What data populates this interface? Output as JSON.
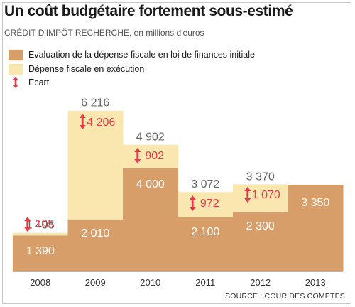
{
  "title": "Un coût budgétaire fortement sous-estimé",
  "subtitle": "CRÉDIT D'IMPÔT RECHERCHE, en millions d'euros",
  "source": "SOURCE : COUR DES COMPTES",
  "colors": {
    "initial": "#d79e6a",
    "execution": "#fae7b0",
    "ecart": "#e03c4a",
    "label": "#666666",
    "baseline": "#b5b5b5"
  },
  "legend": [
    {
      "label": "Evaluation de la dépense fiscale en loi de finances initiale",
      "key": "initial"
    },
    {
      "label": "Dépense fiscale en exécution",
      "key": "execution"
    },
    {
      "label": "Ecart",
      "key": "ecart"
    }
  ],
  "chart_data": {
    "type": "bar",
    "categories": [
      "2008",
      "2009",
      "2010",
      "2011",
      "2012",
      "2013"
    ],
    "series": [
      {
        "name": "Evaluation de la dépense fiscale en loi de finances initiale",
        "values": [
          1390,
          2010,
          4000,
          2100,
          2300,
          3350
        ]
      },
      {
        "name": "Dépense fiscale en exécution",
        "values": [
          1495,
          6216,
          4902,
          3072,
          3370,
          null
        ]
      },
      {
        "name": "Ecart",
        "values": [
          105,
          4206,
          902,
          972,
          1070,
          null
        ]
      }
    ],
    "value_labels": {
      "initial": [
        "1 390",
        "2 010",
        "4 000",
        "2 100",
        "2 300",
        "3 350"
      ],
      "execution": [
        "1 495",
        "6 216",
        "4 902",
        "3 072",
        "3 370",
        ""
      ],
      "ecart": [
        "105",
        "4 206",
        "902",
        "972",
        "1 070",
        ""
      ]
    },
    "ylim": [
      0,
      6216
    ],
    "grid": false,
    "legend_position": "top-left"
  }
}
